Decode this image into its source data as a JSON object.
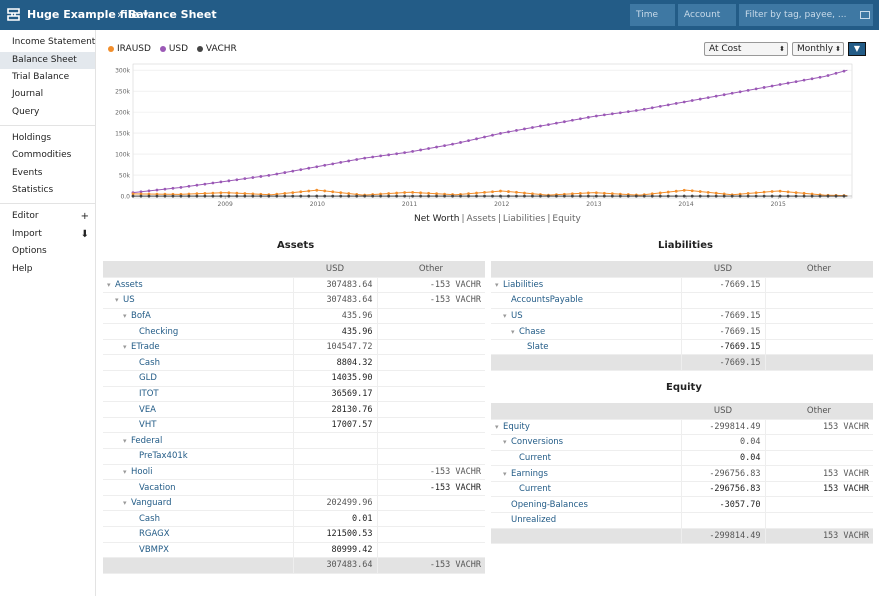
{
  "header": {
    "file_title": "Huge Example file ▾",
    "separator": "›",
    "page": "Balance Sheet",
    "time_placeholder": "Time",
    "account_placeholder": "Account",
    "tag_placeholder": "Filter by tag, payee, ..."
  },
  "sidebar": {
    "group1": [
      "Income Statement",
      "Balance Sheet",
      "Trial Balance",
      "Journal",
      "Query"
    ],
    "group2": [
      "Holdings",
      "Commodities",
      "Events",
      "Statistics"
    ],
    "group3": [
      "Editor",
      "Import",
      "Options",
      "Help"
    ],
    "editor_icon": "+",
    "import_icon": "⬇"
  },
  "chart_controls": {
    "conversion": "At Cost",
    "interval": "Monthly",
    "toggle_icon": "▼"
  },
  "chart_tabs": [
    "Net Worth",
    "Assets",
    "Liabilities",
    "Equity"
  ],
  "colors": {
    "accent": "#235c87",
    "IRAUSD": "#f28e2b",
    "USD": "#9b59b6",
    "VACHR": "#444444"
  },
  "chart_data": {
    "type": "line",
    "legend": [
      "IRAUSD",
      "USD",
      "VACHR"
    ],
    "x_ticks": [
      "2009",
      "2010",
      "2011",
      "2012",
      "2013",
      "2014",
      "2015"
    ],
    "y_ticks": [
      "0.0",
      "50k",
      "100k",
      "150k",
      "200k",
      "250k",
      "300k"
    ],
    "ylim": [
      0,
      310000
    ],
    "xlim": [
      2008.0,
      2015.8
    ],
    "series": [
      {
        "name": "USD",
        "x": [
          2008.0,
          2008.5,
          2009.0,
          2009.5,
          2010.0,
          2010.5,
          2011.0,
          2011.5,
          2012.0,
          2012.5,
          2013.0,
          2013.5,
          2014.0,
          2014.5,
          2015.0,
          2015.5,
          2015.75
        ],
        "values": [
          8000,
          20000,
          35000,
          50000,
          70000,
          90000,
          105000,
          125000,
          150000,
          170000,
          190000,
          205000,
          225000,
          245000,
          265000,
          285000,
          300000
        ]
      },
      {
        "name": "IRAUSD",
        "x": [
          2008.0,
          2008.5,
          2009.0,
          2009.5,
          2010.0,
          2010.5,
          2011.0,
          2011.5,
          2012.0,
          2012.5,
          2013.0,
          2013.5,
          2014.0,
          2014.5,
          2015.0,
          2015.5,
          2015.75
        ],
        "values": [
          5000,
          4000,
          8000,
          3000,
          14000,
          2000,
          9000,
          3000,
          12000,
          2000,
          8000,
          2000,
          14000,
          3000,
          12000,
          2000,
          1000
        ]
      },
      {
        "name": "VACHR",
        "x": [
          2008.0,
          2015.75
        ],
        "values": [
          -153,
          -153
        ]
      }
    ]
  },
  "assets": {
    "title": "Assets",
    "headers": [
      "",
      "USD",
      "Other"
    ],
    "rows": [
      {
        "name": "Assets",
        "level": 0,
        "caret": true,
        "usd": "307483.64",
        "other": "-153 VACHR"
      },
      {
        "name": "US",
        "level": 1,
        "caret": true,
        "usd": "307483.64",
        "other": "-153 VACHR"
      },
      {
        "name": "BofA",
        "level": 2,
        "caret": true,
        "usd": "435.96",
        "other": ""
      },
      {
        "name": "Checking",
        "level": 3,
        "caret": false,
        "usd": "435.96",
        "other": "",
        "dark": true
      },
      {
        "name": "ETrade",
        "level": 2,
        "caret": true,
        "usd": "104547.72",
        "other": ""
      },
      {
        "name": "Cash",
        "level": 3,
        "caret": false,
        "usd": "8804.32",
        "other": "",
        "dark": true
      },
      {
        "name": "GLD",
        "level": 3,
        "caret": false,
        "usd": "14035.90",
        "other": "",
        "dark": true
      },
      {
        "name": "ITOT",
        "level": 3,
        "caret": false,
        "usd": "36569.17",
        "other": "",
        "dark": true
      },
      {
        "name": "VEA",
        "level": 3,
        "caret": false,
        "usd": "28130.76",
        "other": "",
        "dark": true
      },
      {
        "name": "VHT",
        "level": 3,
        "caret": false,
        "usd": "17007.57",
        "other": "",
        "dark": true
      },
      {
        "name": "Federal",
        "level": 2,
        "caret": true,
        "usd": "",
        "other": ""
      },
      {
        "name": "PreTax401k",
        "level": 3,
        "caret": false,
        "usd": "",
        "other": ""
      },
      {
        "name": "Hooli",
        "level": 2,
        "caret": true,
        "usd": "",
        "other": "-153 VACHR"
      },
      {
        "name": "Vacation",
        "level": 3,
        "caret": false,
        "usd": "",
        "other": "-153 VACHR",
        "dark": true
      },
      {
        "name": "Vanguard",
        "level": 2,
        "caret": true,
        "usd": "202499.96",
        "other": ""
      },
      {
        "name": "Cash",
        "level": 3,
        "caret": false,
        "usd": "0.01",
        "other": "",
        "dark": true
      },
      {
        "name": "RGAGX",
        "level": 3,
        "caret": false,
        "usd": "121500.53",
        "other": "",
        "dark": true
      },
      {
        "name": "VBMPX",
        "level": 3,
        "caret": false,
        "usd": "80999.42",
        "other": "",
        "dark": true
      }
    ],
    "total": {
      "usd": "307483.64",
      "other": "-153 VACHR"
    }
  },
  "liabilities": {
    "title": "Liabilities",
    "headers": [
      "",
      "USD",
      "Other"
    ],
    "rows": [
      {
        "name": "Liabilities",
        "level": 0,
        "caret": true,
        "usd": "-7669.15",
        "other": ""
      },
      {
        "name": "AccountsPayable",
        "level": 1,
        "caret": false,
        "usd": "",
        "other": ""
      },
      {
        "name": "US",
        "level": 1,
        "caret": true,
        "usd": "-7669.15",
        "other": ""
      },
      {
        "name": "Chase",
        "level": 2,
        "caret": true,
        "usd": "-7669.15",
        "other": ""
      },
      {
        "name": "Slate",
        "level": 3,
        "caret": false,
        "usd": "-7669.15",
        "other": "",
        "dark": true
      }
    ],
    "total": {
      "usd": "-7669.15",
      "other": ""
    }
  },
  "equity": {
    "title": "Equity",
    "headers": [
      "",
      "USD",
      "Other"
    ],
    "rows": [
      {
        "name": "Equity",
        "level": 0,
        "caret": true,
        "usd": "-299814.49",
        "other": "153 VACHR"
      },
      {
        "name": "Conversions",
        "level": 1,
        "caret": true,
        "usd": "0.04",
        "other": ""
      },
      {
        "name": "Current",
        "level": 2,
        "caret": false,
        "usd": "0.04",
        "other": "",
        "dark": true
      },
      {
        "name": "Earnings",
        "level": 1,
        "caret": true,
        "usd": "-296756.83",
        "other": "153 VACHR"
      },
      {
        "name": "Current",
        "level": 2,
        "caret": false,
        "usd": "-296756.83",
        "other": "153 VACHR",
        "dark": true
      },
      {
        "name": "Opening-Balances",
        "level": 1,
        "caret": false,
        "usd": "-3057.70",
        "other": "",
        "dark": true
      },
      {
        "name": "Unrealized",
        "level": 1,
        "caret": false,
        "usd": "",
        "other": ""
      }
    ],
    "total": {
      "usd": "-299814.49",
      "other": "153 VACHR"
    }
  }
}
